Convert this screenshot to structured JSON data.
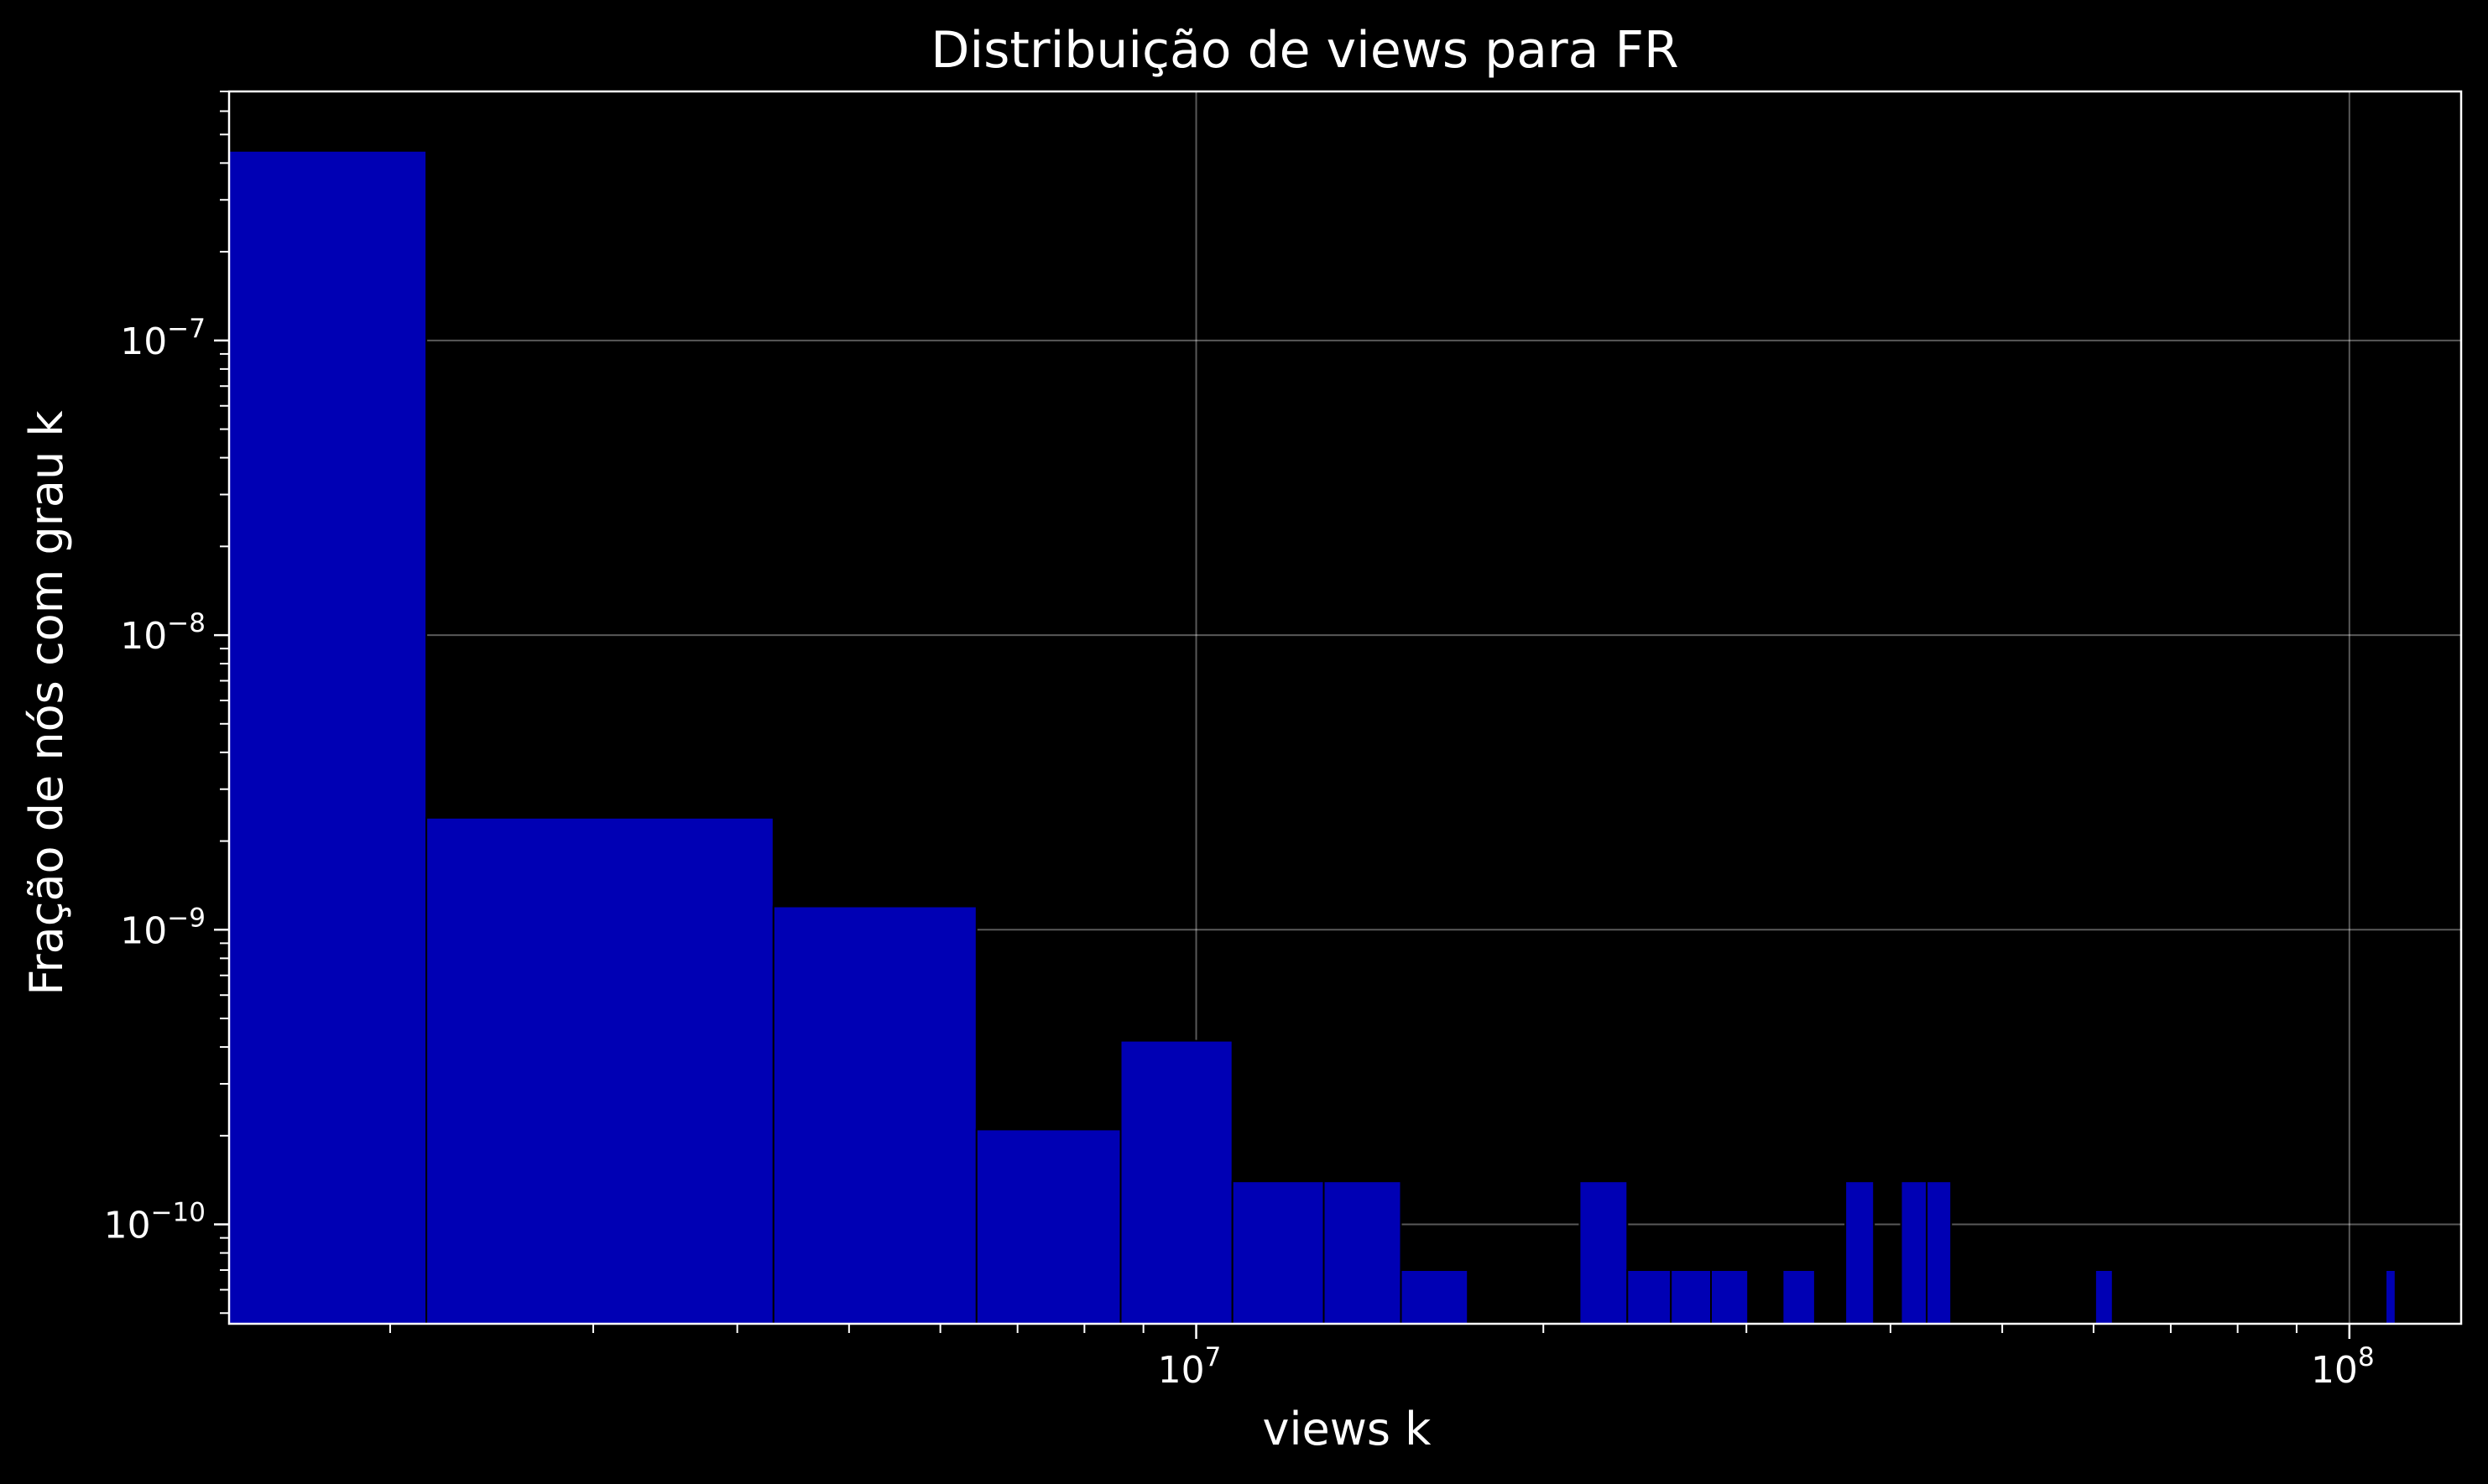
{
  "chart_data": {
    "type": "bar",
    "title": "Distribuição de views para FR",
    "xlabel": "views k",
    "ylabel": "Fração de nós com grau k",
    "xscale": "log",
    "yscale": "log",
    "xlim": [
      1450000,
      125000000
    ],
    "ylim": [
      4.6e-11,
      7e-07
    ],
    "grid": true,
    "bar_color": "#0000b4",
    "background_color": "#000000",
    "x_ticks": [
      {
        "value": 10000000,
        "base": "10",
        "exp": "7"
      },
      {
        "value": 100000000,
        "base": "10",
        "exp": "8"
      }
    ],
    "y_ticks": [
      {
        "value": 1e-07,
        "base": "10",
        "exp": "−7"
      },
      {
        "value": 1e-08,
        "base": "10",
        "exp": "−8"
      },
      {
        "value": 1e-09,
        "base": "10",
        "exp": "−9"
      },
      {
        "value": 1e-10,
        "base": "10",
        "exp": "−10"
      }
    ],
    "bins": [
      {
        "x0": 1450000,
        "x1": 2150000,
        "value": 4.4e-07
      },
      {
        "x0": 2150000,
        "x1": 4300000,
        "value": 2.4e-09
      },
      {
        "x0": 4300000,
        "x1": 6450000,
        "value": 1.2e-09
      },
      {
        "x0": 6450000,
        "x1": 8600000,
        "value": 2.1e-10
      },
      {
        "x0": 8600000,
        "x1": 10750000,
        "value": 4.2e-10
      },
      {
        "x0": 10750000,
        "x1": 12900000,
        "value": 1.4e-10
      },
      {
        "x0": 12900000,
        "x1": 15050000,
        "value": 1.4e-10
      },
      {
        "x0": 15050000,
        "x1": 17200000,
        "value": 7e-11
      },
      {
        "x0": 21500000,
        "x1": 23650000,
        "value": 1.4e-10
      },
      {
        "x0": 23650000,
        "x1": 25800000,
        "value": 7e-11
      },
      {
        "x0": 25800000,
        "x1": 27950000,
        "value": 7e-11
      },
      {
        "x0": 27950000,
        "x1": 30100000,
        "value": 7e-11
      },
      {
        "x0": 32250000,
        "x1": 34400000,
        "value": 7e-11
      },
      {
        "x0": 36550000,
        "x1": 38700000,
        "value": 1.4e-10
      },
      {
        "x0": 40850000,
        "x1": 43000000,
        "value": 1.4e-10
      },
      {
        "x0": 43000000,
        "x1": 45150000,
        "value": 1.4e-10
      },
      {
        "x0": 60200000,
        "x1": 62350000,
        "value": 7e-11
      },
      {
        "x0": 107500000,
        "x1": 109650000,
        "value": 7e-11
      }
    ]
  }
}
